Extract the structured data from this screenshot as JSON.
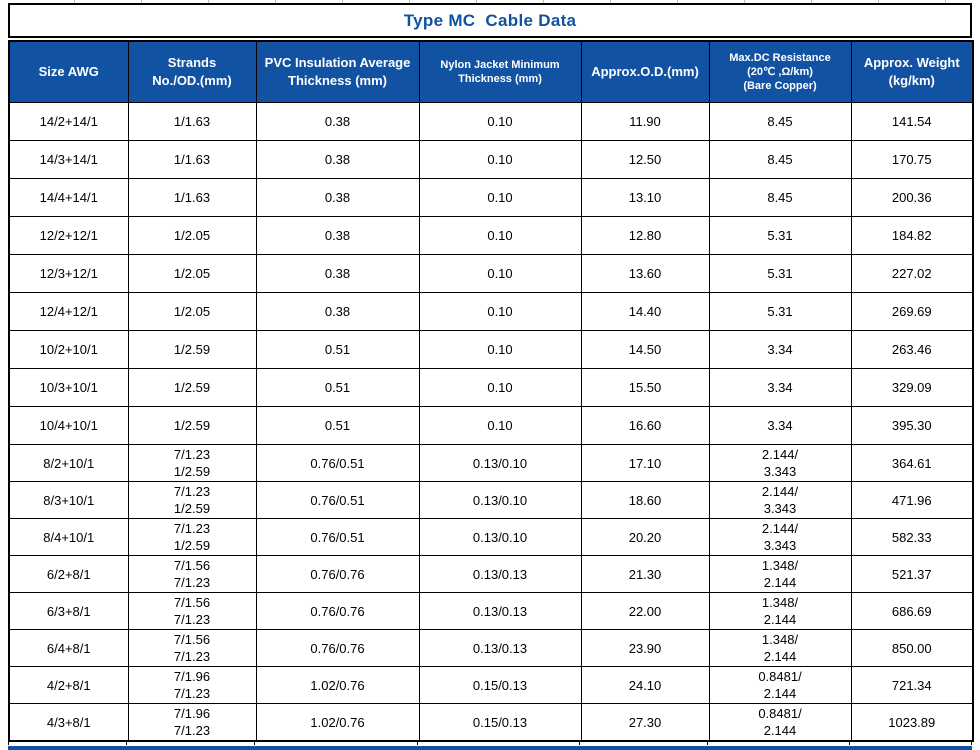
{
  "page": {
    "title": "Type MC  Cable Data"
  },
  "colors": {
    "header_bg": "#1152A2",
    "title_text": "#1152A2",
    "header_text": "#FFFFFF",
    "body_text": "#000000",
    "grid_border": "#000000"
  },
  "table": {
    "columns": [
      {
        "id": "size",
        "small": false,
        "lines": [
          "Size AWG"
        ]
      },
      {
        "id": "strands",
        "small": false,
        "lines": [
          "Strands",
          "No./OD.(mm)"
        ]
      },
      {
        "id": "pvc",
        "small": false,
        "lines": [
          "PVC Insulation Average",
          "Thickness (mm)"
        ]
      },
      {
        "id": "nylon",
        "small": true,
        "lines": [
          "Nylon Jacket Minimum",
          "Thickness (mm)"
        ]
      },
      {
        "id": "od",
        "small": false,
        "lines": [
          "Approx.O.D.(mm)"
        ]
      },
      {
        "id": "resistance",
        "small": true,
        "lines": [
          "Max.DC Resistance",
          "(20℃ ,Ω/km)",
          "(Bare Copper)"
        ]
      },
      {
        "id": "weight",
        "small": false,
        "lines": [
          "Approx. Weight",
          "(kg/km)"
        ]
      }
    ],
    "rows": [
      {
        "cells": [
          [
            "14/2+14/1"
          ],
          [
            "1/1.63"
          ],
          [
            "0.38"
          ],
          [
            "0.10"
          ],
          [
            "11.90"
          ],
          [
            "8.45"
          ],
          [
            "141.54"
          ]
        ]
      },
      {
        "cells": [
          [
            "14/3+14/1"
          ],
          [
            "1/1.63"
          ],
          [
            "0.38"
          ],
          [
            "0.10"
          ],
          [
            "12.50"
          ],
          [
            "8.45"
          ],
          [
            "170.75"
          ]
        ]
      },
      {
        "cells": [
          [
            "14/4+14/1"
          ],
          [
            "1/1.63"
          ],
          [
            "0.38"
          ],
          [
            "0.10"
          ],
          [
            "13.10"
          ],
          [
            "8.45"
          ],
          [
            "200.36"
          ]
        ]
      },
      {
        "cells": [
          [
            "12/2+12/1"
          ],
          [
            "1/2.05"
          ],
          [
            "0.38"
          ],
          [
            "0.10"
          ],
          [
            "12.80"
          ],
          [
            "5.31"
          ],
          [
            "184.82"
          ]
        ]
      },
      {
        "cells": [
          [
            "12/3+12/1"
          ],
          [
            "1/2.05"
          ],
          [
            "0.38"
          ],
          [
            "0.10"
          ],
          [
            "13.60"
          ],
          [
            "5.31"
          ],
          [
            "227.02"
          ]
        ]
      },
      {
        "cells": [
          [
            "12/4+12/1"
          ],
          [
            "1/2.05"
          ],
          [
            "0.38"
          ],
          [
            "0.10"
          ],
          [
            "14.40"
          ],
          [
            "5.31"
          ],
          [
            "269.69"
          ]
        ]
      },
      {
        "cells": [
          [
            "10/2+10/1"
          ],
          [
            "1/2.59"
          ],
          [
            "0.51"
          ],
          [
            "0.10"
          ],
          [
            "14.50"
          ],
          [
            "3.34"
          ],
          [
            "263.46"
          ]
        ]
      },
      {
        "cells": [
          [
            "10/3+10/1"
          ],
          [
            "1/2.59"
          ],
          [
            "0.51"
          ],
          [
            "0.10"
          ],
          [
            "15.50"
          ],
          [
            "3.34"
          ],
          [
            "329.09"
          ]
        ]
      },
      {
        "cells": [
          [
            "10/4+10/1"
          ],
          [
            "1/2.59"
          ],
          [
            "0.51"
          ],
          [
            "0.10"
          ],
          [
            "16.60"
          ],
          [
            "3.34"
          ],
          [
            "395.30"
          ]
        ]
      },
      {
        "cells": [
          [
            "8/2+10/1"
          ],
          [
            "7/1.23",
            "1/2.59"
          ],
          [
            "0.76/0.51"
          ],
          [
            "0.13/0.10"
          ],
          [
            "17.10"
          ],
          [
            "2.144/",
            "3.343"
          ],
          [
            "364.61"
          ]
        ]
      },
      {
        "cells": [
          [
            "8/3+10/1"
          ],
          [
            "7/1.23",
            "1/2.59"
          ],
          [
            "0.76/0.51"
          ],
          [
            "0.13/0.10"
          ],
          [
            "18.60"
          ],
          [
            "2.144/",
            "3.343"
          ],
          [
            "471.96"
          ]
        ]
      },
      {
        "cells": [
          [
            "8/4+10/1"
          ],
          [
            "7/1.23",
            "1/2.59"
          ],
          [
            "0.76/0.51"
          ],
          [
            "0.13/0.10"
          ],
          [
            "20.20"
          ],
          [
            "2.144/",
            "3.343"
          ],
          [
            "582.33"
          ]
        ]
      },
      {
        "cells": [
          [
            "6/2+8/1"
          ],
          [
            "7/1.56",
            "7/1.23"
          ],
          [
            "0.76/0.76"
          ],
          [
            "0.13/0.13"
          ],
          [
            "21.30"
          ],
          [
            "1.348/",
            "2.144"
          ],
          [
            "521.37"
          ]
        ]
      },
      {
        "cells": [
          [
            "6/3+8/1"
          ],
          [
            "7/1.56",
            "7/1.23"
          ],
          [
            "0.76/0.76"
          ],
          [
            "0.13/0.13"
          ],
          [
            "22.00"
          ],
          [
            "1.348/",
            "2.144"
          ],
          [
            "686.69"
          ]
        ]
      },
      {
        "cells": [
          [
            "6/4+8/1"
          ],
          [
            "7/1.56",
            "7/1.23"
          ],
          [
            "0.76/0.76"
          ],
          [
            "0.13/0.13"
          ],
          [
            "23.90"
          ],
          [
            "1.348/",
            "2.144"
          ],
          [
            "850.00"
          ]
        ]
      },
      {
        "cells": [
          [
            "4/2+8/1"
          ],
          [
            "7/1.96",
            "7/1.23"
          ],
          [
            "1.02/0.76"
          ],
          [
            "0.15/0.13"
          ],
          [
            "24.10"
          ],
          [
            "0.8481/",
            "2.144"
          ],
          [
            "721.34"
          ]
        ]
      },
      {
        "cells": [
          [
            "4/3+8/1"
          ],
          [
            "7/1.96",
            "7/1.23"
          ],
          [
            "1.02/0.76"
          ],
          [
            "0.15/0.13"
          ],
          [
            "27.30"
          ],
          [
            "0.8481/",
            "2.144"
          ],
          [
            "1023.89"
          ]
        ]
      }
    ]
  }
}
